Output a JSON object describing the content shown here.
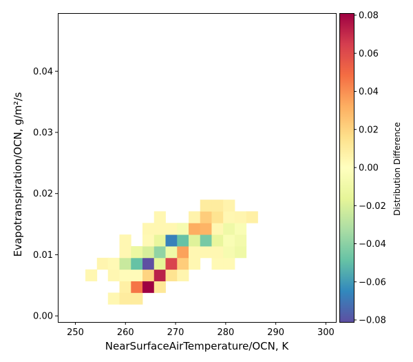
{
  "chart_data": {
    "type": "heatmap",
    "xlabel": "NearSurfaceAirTemperature/OCN,  K",
    "ylabel": "Evapotranspiration/OCN,  g/m²/s",
    "colorbar_label": "Distribution Difference",
    "colormap": "Spectral_r",
    "xlim": [
      246.5,
      302.0
    ],
    "ylim": [
      -0.001,
      0.0495
    ],
    "x_ticks": [
      250,
      260,
      270,
      280,
      290,
      300
    ],
    "y_ticks": [
      0.0,
      0.01,
      0.02,
      0.03,
      0.04
    ],
    "y_tick_labels": [
      "0.00",
      "0.01",
      "0.02",
      "0.03",
      "0.04"
    ],
    "vmin": -0.08,
    "vmax": 0.08,
    "colorbar_ticks": [
      0.08,
      0.06,
      0.04,
      0.02,
      0.0,
      -0.02,
      -0.04,
      -0.06,
      -0.08
    ],
    "colorbar_tick_labels": [
      "0.08",
      "0.06",
      "0.04",
      "0.02",
      "0.00",
      "−0.02",
      "−0.04",
      "−0.06",
      "−0.08"
    ],
    "bin_width_x": 2.3,
    "bin_width_y": 0.0019,
    "bins": [
      {
        "x": 256.5,
        "y": 0.0019,
        "v": 0.004
      },
      {
        "x": 258.8,
        "y": 0.0019,
        "v": 0.01
      },
      {
        "x": 261.1,
        "y": 0.0019,
        "v": 0.01
      },
      {
        "x": 258.8,
        "y": 0.0038,
        "v": 0.008
      },
      {
        "x": 261.1,
        "y": 0.0038,
        "v": 0.046
      },
      {
        "x": 263.4,
        "y": 0.0038,
        "v": 0.08
      },
      {
        "x": 265.7,
        "y": 0.0038,
        "v": 0.012
      },
      {
        "x": 252.0,
        "y": 0.0057,
        "v": 0.004
      },
      {
        "x": 256.5,
        "y": 0.0057,
        "v": 0.004
      },
      {
        "x": 258.8,
        "y": 0.0057,
        "v": 0.002
      },
      {
        "x": 261.1,
        "y": 0.0057,
        "v": 0.002
      },
      {
        "x": 263.4,
        "y": 0.0057,
        "v": 0.02
      },
      {
        "x": 265.7,
        "y": 0.0057,
        "v": 0.072
      },
      {
        "x": 268.0,
        "y": 0.0057,
        "v": 0.014
      },
      {
        "x": 270.3,
        "y": 0.0057,
        "v": 0.005
      },
      {
        "x": 254.3,
        "y": 0.0076,
        "v": 0.005
      },
      {
        "x": 256.5,
        "y": 0.0076,
        "v": 0.003
      },
      {
        "x": 258.8,
        "y": 0.0076,
        "v": -0.024
      },
      {
        "x": 261.1,
        "y": 0.0076,
        "v": -0.048
      },
      {
        "x": 263.4,
        "y": 0.0076,
        "v": -0.08
      },
      {
        "x": 265.7,
        "y": 0.0076,
        "v": -0.016
      },
      {
        "x": 268.0,
        "y": 0.0076,
        "v": 0.062
      },
      {
        "x": 270.3,
        "y": 0.0076,
        "v": 0.022
      },
      {
        "x": 272.6,
        "y": 0.0076,
        "v": 0.004
      },
      {
        "x": 277.2,
        "y": 0.0076,
        "v": 0.003
      },
      {
        "x": 279.5,
        "y": 0.0076,
        "v": 0.003
      },
      {
        "x": 258.8,
        "y": 0.0095,
        "v": 0.004
      },
      {
        "x": 261.1,
        "y": 0.0095,
        "v": -0.012
      },
      {
        "x": 263.4,
        "y": 0.0095,
        "v": -0.02
      },
      {
        "x": 265.7,
        "y": 0.0095,
        "v": -0.038
      },
      {
        "x": 268.0,
        "y": 0.0095,
        "v": -0.01
      },
      {
        "x": 270.3,
        "y": 0.0095,
        "v": 0.035
      },
      {
        "x": 272.6,
        "y": 0.0095,
        "v": 0.004
      },
      {
        "x": 274.9,
        "y": 0.0095,
        "v": 0.004
      },
      {
        "x": 277.2,
        "y": 0.0095,
        "v": 0.004
      },
      {
        "x": 279.5,
        "y": 0.0095,
        "v": -0.006
      },
      {
        "x": 281.8,
        "y": 0.0095,
        "v": -0.01
      },
      {
        "x": 258.8,
        "y": 0.0114,
        "v": 0.004
      },
      {
        "x": 263.4,
        "y": 0.0114,
        "v": 0.003
      },
      {
        "x": 265.7,
        "y": 0.0114,
        "v": -0.014
      },
      {
        "x": 268.0,
        "y": 0.0114,
        "v": -0.066
      },
      {
        "x": 270.3,
        "y": 0.0114,
        "v": -0.048
      },
      {
        "x": 272.6,
        "y": 0.0114,
        "v": -0.018
      },
      {
        "x": 274.9,
        "y": 0.0114,
        "v": -0.044
      },
      {
        "x": 277.2,
        "y": 0.0114,
        "v": -0.014
      },
      {
        "x": 279.5,
        "y": 0.0114,
        "v": -0.004
      },
      {
        "x": 281.8,
        "y": 0.0114,
        "v": -0.008
      },
      {
        "x": 263.4,
        "y": 0.0133,
        "v": 0.004
      },
      {
        "x": 265.7,
        "y": 0.0133,
        "v": 0.004
      },
      {
        "x": 268.0,
        "y": 0.0133,
        "v": 0.004
      },
      {
        "x": 270.3,
        "y": 0.0133,
        "v": -0.006
      },
      {
        "x": 272.6,
        "y": 0.0133,
        "v": 0.032
      },
      {
        "x": 274.9,
        "y": 0.0133,
        "v": 0.03
      },
      {
        "x": 277.2,
        "y": 0.0133,
        "v": 0.004
      },
      {
        "x": 279.5,
        "y": 0.0133,
        "v": -0.01
      },
      {
        "x": 281.8,
        "y": 0.0133,
        "v": -0.004
      },
      {
        "x": 265.7,
        "y": 0.0152,
        "v": 0.004
      },
      {
        "x": 272.6,
        "y": 0.0152,
        "v": 0.006
      },
      {
        "x": 274.9,
        "y": 0.0152,
        "v": 0.022
      },
      {
        "x": 277.2,
        "y": 0.0152,
        "v": 0.014
      },
      {
        "x": 279.5,
        "y": 0.0152,
        "v": 0.004
      },
      {
        "x": 281.8,
        "y": 0.0152,
        "v": 0.005
      },
      {
        "x": 284.1,
        "y": 0.0152,
        "v": 0.008
      },
      {
        "x": 274.9,
        "y": 0.0171,
        "v": 0.01
      },
      {
        "x": 277.2,
        "y": 0.0171,
        "v": 0.01
      },
      {
        "x": 279.5,
        "y": 0.0171,
        "v": 0.006
      }
    ]
  }
}
